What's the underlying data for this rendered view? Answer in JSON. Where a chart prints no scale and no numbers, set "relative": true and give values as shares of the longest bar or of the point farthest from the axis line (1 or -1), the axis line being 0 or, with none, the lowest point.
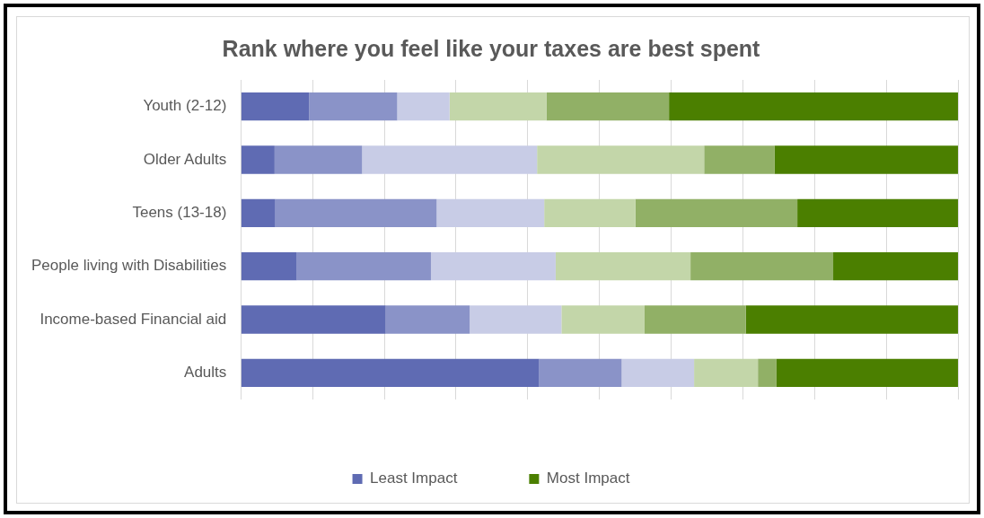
{
  "chart_data": {
    "type": "bar",
    "orientation": "horizontal",
    "stacked": true,
    "relative": true,
    "title": "Rank where you feel like your taxes are best spent",
    "categories": [
      "Youth (2-12)",
      "Older Adults",
      "Teens (13-18)",
      "People living with Disabilities",
      "Income-based Financial aid",
      "Adults"
    ],
    "series": [
      {
        "name": "Least Impact",
        "color": "#5f6bb3",
        "values": [
          0.095,
          0.047,
          0.048,
          0.078,
          0.202,
          0.416
        ]
      },
      {
        "color": "#8a93c8",
        "values": [
          0.123,
          0.122,
          0.225,
          0.187,
          0.117,
          0.115
        ]
      },
      {
        "color": "#c8cce6",
        "values": [
          0.073,
          0.244,
          0.15,
          0.174,
          0.128,
          0.101
        ]
      },
      {
        "color": "#c3d6a9",
        "values": [
          0.135,
          0.233,
          0.127,
          0.188,
          0.116,
          0.089
        ]
      },
      {
        "color": "#91b066",
        "values": [
          0.171,
          0.098,
          0.226,
          0.199,
          0.141,
          0.026
        ]
      },
      {
        "name": "Most Impact",
        "color": "#4b7f00",
        "values": [
          0.403,
          0.256,
          0.224,
          0.174,
          0.296,
          0.253
        ]
      }
    ],
    "grid": "x",
    "legend": "bottom"
  }
}
